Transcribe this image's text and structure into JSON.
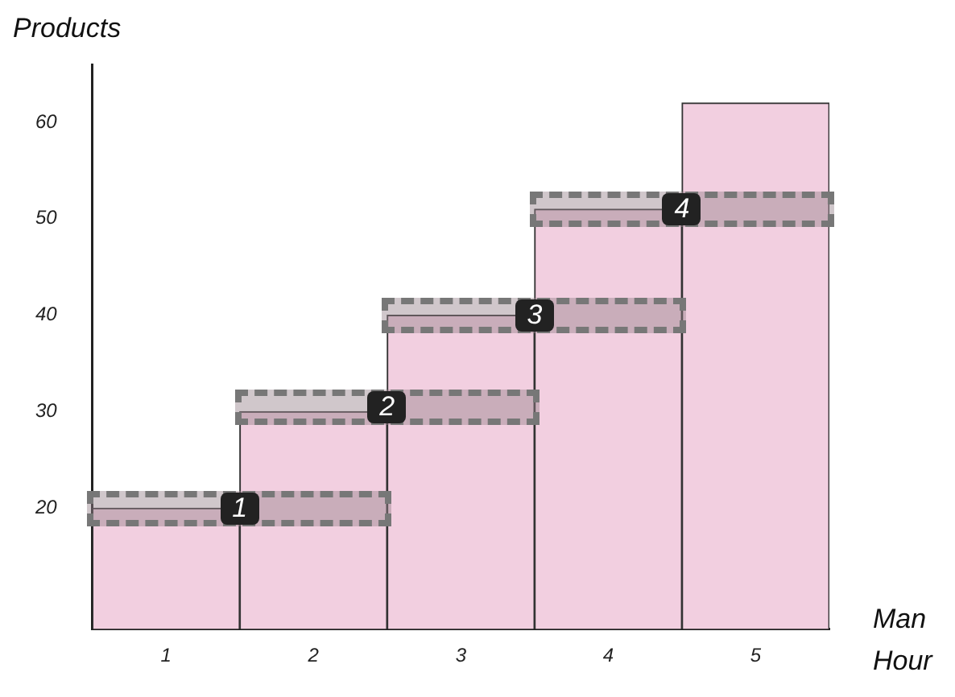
{
  "chart_data": {
    "type": "bar",
    "ylabel": "Products",
    "xlabel": "Man Hour",
    "categories": [
      "1",
      "2",
      "3",
      "4",
      "5"
    ],
    "values": [
      20,
      30,
      40,
      51,
      62
    ],
    "color": "#f2cfe0",
    "ylim": [
      7.5,
      66
    ],
    "yticks": [
      20,
      30,
      40,
      50,
      60
    ],
    "grid": false,
    "legend": false,
    "annotations": [
      {
        "text": "1",
        "x": "1",
        "y": 20
      },
      {
        "text": "2",
        "x": "2",
        "y": 30.5
      },
      {
        "text": "3",
        "x": "3",
        "y": 40
      },
      {
        "text": "4",
        "x": "4",
        "y": 51
      }
    ]
  }
}
